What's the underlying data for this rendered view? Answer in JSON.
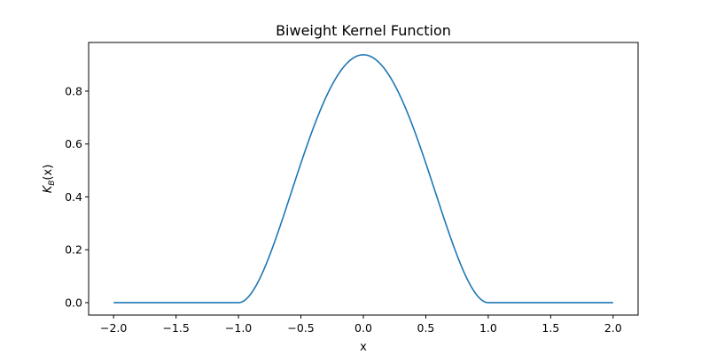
{
  "chart_data": {
    "type": "line",
    "title": "Biweight Kernel Function",
    "xlabel": "x",
    "ylabel": {
      "base": "K",
      "sub": "B",
      "rest": "(x)"
    },
    "xlim": [
      -2.2,
      2.2
    ],
    "ylim": [
      -0.047,
      0.984
    ],
    "xticks": [
      -2.0,
      -1.5,
      -1.0,
      -0.5,
      0.0,
      0.5,
      1.0,
      1.5,
      2.0
    ],
    "xtick_labels": [
      "−2.0",
      "−1.5",
      "−1.0",
      "−0.5",
      "0.0",
      "0.5",
      "1.0",
      "1.5",
      "2.0"
    ],
    "yticks": [
      0.0,
      0.2,
      0.4,
      0.6,
      0.8
    ],
    "ytick_labels": [
      "0.0",
      "0.2",
      "0.4",
      "0.6",
      "0.8"
    ],
    "grid": false,
    "series": [
      {
        "color": "#1f77b4",
        "x": [
          -2.0,
          -1.5,
          -1.0,
          -0.9,
          -0.8,
          -0.7,
          -0.6,
          -0.5,
          -0.4,
          -0.3,
          -0.2,
          -0.1,
          0.0,
          0.1,
          0.2,
          0.3,
          0.4,
          0.5,
          0.6,
          0.7,
          0.8,
          0.9,
          1.0,
          1.5,
          2.0
        ],
        "y": [
          0.0,
          0.0,
          0.0,
          0.0339,
          0.1215,
          0.2438,
          0.384,
          0.5273,
          0.6615,
          0.7759,
          0.864,
          0.919,
          0.9375,
          0.919,
          0.864,
          0.7759,
          0.6615,
          0.5273,
          0.384,
          0.2438,
          0.1215,
          0.0339,
          0.0,
          0.0,
          0.0
        ]
      }
    ]
  }
}
